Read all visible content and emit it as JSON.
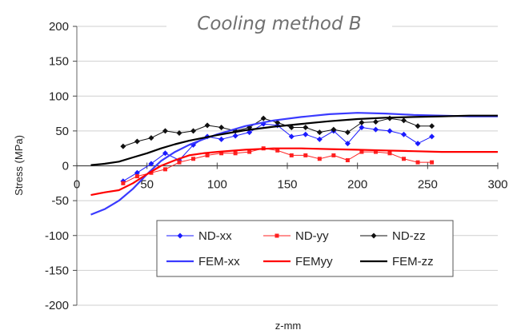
{
  "chart_data": {
    "type": "line",
    "title": "Cooling method B",
    "xlabel": "z-mm",
    "ylabel": "Stress (MPa)",
    "xlim": [
      0,
      300
    ],
    "ylim": [
      -200,
      200
    ],
    "x_ticks": [
      "0",
      "50",
      "100",
      "150",
      "200",
      "250",
      "300"
    ],
    "y_ticks": [
      "200",
      "150",
      "100",
      "50",
      "0",
      "-50",
      "-100",
      "-150",
      "-200"
    ],
    "grid": "horizontal",
    "legend_position": "bottom-center",
    "series": [
      {
        "name": "ND-xx",
        "style": "markers-line",
        "marker": "diamond",
        "color": "#1a1aff",
        "x": [
          33,
          43,
          53,
          63,
          73,
          83,
          93,
          103,
          113,
          123,
          133,
          143,
          153,
          163,
          173,
          183,
          193,
          203,
          213,
          223,
          233,
          243,
          253
        ],
        "y": [
          -22,
          -10,
          3,
          18,
          8,
          30,
          42,
          38,
          43,
          48,
          60,
          58,
          42,
          45,
          38,
          50,
          32,
          55,
          52,
          50,
          45,
          32,
          42
        ]
      },
      {
        "name": "ND-yy",
        "style": "markers-line",
        "marker": "square",
        "color": "#ff2020",
        "x": [
          33,
          43,
          53,
          63,
          73,
          83,
          93,
          103,
          113,
          123,
          133,
          143,
          153,
          163,
          173,
          183,
          193,
          203,
          213,
          223,
          233,
          243,
          253
        ],
        "y": [
          -25,
          -15,
          -10,
          -5,
          5,
          10,
          15,
          18,
          18,
          20,
          25,
          22,
          15,
          15,
          10,
          15,
          8,
          20,
          20,
          18,
          10,
          5,
          5
        ]
      },
      {
        "name": "ND-zz",
        "style": "markers-line",
        "marker": "diamond",
        "color": "#111111",
        "x": [
          33,
          43,
          53,
          63,
          73,
          83,
          93,
          103,
          113,
          123,
          133,
          143,
          153,
          163,
          173,
          183,
          193,
          203,
          213,
          223,
          233,
          243,
          253
        ],
        "y": [
          28,
          35,
          40,
          50,
          47,
          50,
          58,
          55,
          50,
          55,
          68,
          62,
          55,
          55,
          48,
          52,
          48,
          62,
          63,
          68,
          65,
          57,
          57
        ]
      },
      {
        "name": "FEM-xx",
        "style": "line",
        "color": "#3a3aff",
        "x": [
          10,
          20,
          30,
          40,
          50,
          60,
          70,
          80,
          90,
          100,
          120,
          140,
          160,
          180,
          200,
          220,
          240,
          260,
          280,
          300
        ],
        "y": [
          -70,
          -62,
          -50,
          -33,
          -12,
          7,
          20,
          30,
          38,
          45,
          57,
          65,
          70,
          74,
          76,
          75,
          73,
          72,
          71,
          71
        ]
      },
      {
        "name": "FEMyy",
        "style": "line",
        "color": "#ff0000",
        "x": [
          10,
          20,
          30,
          40,
          50,
          60,
          70,
          80,
          90,
          100,
          120,
          140,
          160,
          180,
          200,
          220,
          240,
          260,
          280,
          300
        ],
        "y": [
          -42,
          -38,
          -35,
          -25,
          -12,
          0,
          8,
          15,
          18,
          20,
          23,
          25,
          25,
          24,
          23,
          22,
          21,
          20,
          20,
          20
        ]
      },
      {
        "name": "FEM-zz",
        "style": "line",
        "color": "#000000",
        "x": [
          10,
          20,
          30,
          40,
          50,
          60,
          70,
          80,
          90,
          100,
          120,
          140,
          160,
          180,
          200,
          220,
          240,
          260,
          280,
          300
        ],
        "y": [
          1,
          3,
          6,
          12,
          18,
          25,
          31,
          36,
          40,
          44,
          51,
          56,
          60,
          64,
          67,
          69,
          70,
          71,
          72,
          72
        ]
      }
    ]
  }
}
